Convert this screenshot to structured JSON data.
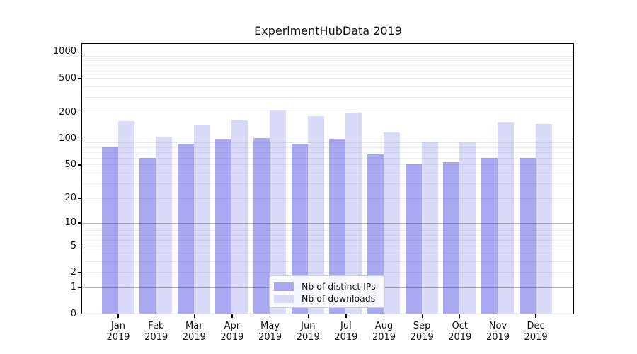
{
  "chart_data": {
    "type": "bar",
    "title": "ExperimentHubData 2019",
    "categories": [
      "Jan 2019",
      "Feb 2019",
      "Mar 2019",
      "Apr 2019",
      "May 2019",
      "Jun 2019",
      "Jul 2019",
      "Aug 2019",
      "Sep 2019",
      "Oct 2019",
      "Nov 2019",
      "Dec 2019"
    ],
    "series": [
      {
        "name": "Nb of distinct IPs",
        "color": "#a9a9f2",
        "values": [
          80,
          60,
          87,
          97,
          102,
          88,
          99,
          66,
          50,
          53,
          60,
          60
        ]
      },
      {
        "name": "Nb of downloads",
        "color": "#d9d9f8",
        "values": [
          160,
          105,
          144,
          163,
          211,
          181,
          200,
          117,
          93,
          91,
          154,
          147
        ]
      }
    ],
    "yscale": "log1p",
    "yticks": [
      0,
      1,
      2,
      5,
      10,
      20,
      50,
      100,
      200,
      500,
      1000
    ],
    "ylim": [
      0,
      1226
    ],
    "xlabel": "",
    "ylabel": "",
    "grid": {
      "on": true,
      "major_at": [
        1,
        10,
        100,
        1000
      ],
      "minor_pattern": [
        2,
        3,
        4,
        5,
        6,
        7,
        8,
        9
      ]
    },
    "legend_position": "lower center"
  },
  "legend": {
    "items": [
      {
        "label": "Nb of distinct IPs"
      },
      {
        "label": "Nb of downloads"
      }
    ]
  },
  "colors": {
    "bar_dark": "#a9a9f2",
    "bar_light": "#d9d9f8",
    "major_grid": "#b0b0b0",
    "minor_grid": "#e9e9e9",
    "spine": "#000000",
    "legend_border": "#cfcfcf"
  }
}
